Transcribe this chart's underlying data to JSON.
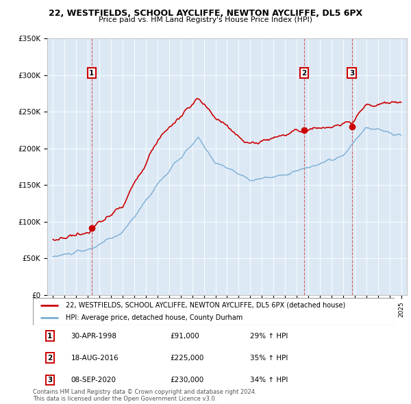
{
  "title1": "22, WESTFIELDS, SCHOOL AYCLIFFE, NEWTON AYCLIFFE, DL5 6PX",
  "title2": "Price paid vs. HM Land Registry's House Price Index (HPI)",
  "ylim": [
    0,
    350000
  ],
  "yticks": [
    0,
    50000,
    100000,
    150000,
    200000,
    250000,
    300000,
    350000
  ],
  "ytick_labels": [
    "£0",
    "£50K",
    "£100K",
    "£150K",
    "£200K",
    "£250K",
    "£300K",
    "£350K"
  ],
  "sale_color": "#cc0000",
  "hpi_color": "#7aadd4",
  "bg_color": "#dce9f5",
  "sales": [
    {
      "year": 1998.33,
      "price": 91000,
      "label": "1"
    },
    {
      "year": 2016.63,
      "price": 225000,
      "label": "2"
    },
    {
      "year": 2020.75,
      "price": 230000,
      "label": "3"
    }
  ],
  "legend_sale": "22, WESTFIELDS, SCHOOL AYCLIFFE, NEWTON AYCLIFFE, DL5 6PX (detached house)",
  "legend_hpi": "HPI: Average price, detached house, County Durham",
  "table_rows": [
    {
      "num": "1",
      "date": "30-APR-1998",
      "price": "£91,000",
      "change": "29% ↑ HPI"
    },
    {
      "num": "2",
      "date": "18-AUG-2016",
      "price": "£225,000",
      "change": "35% ↑ HPI"
    },
    {
      "num": "3",
      "date": "08-SEP-2020",
      "price": "£230,000",
      "change": "34% ↑ HPI"
    }
  ],
  "footer": "Contains HM Land Registry data © Crown copyright and database right 2024.\nThis data is licensed under the Open Government Licence v3.0."
}
